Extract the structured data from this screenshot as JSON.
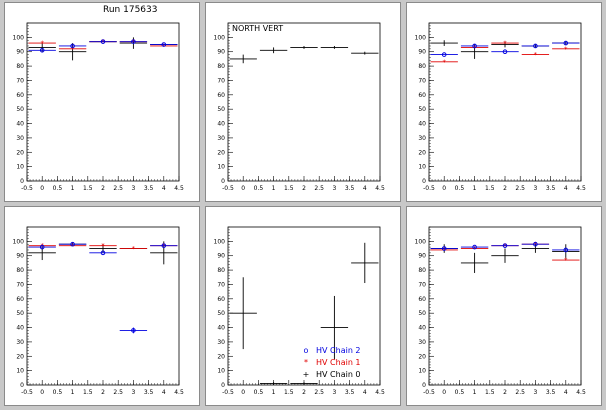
{
  "run_label": "Run 175633",
  "colors": {
    "chain2": "#0000e0",
    "chain1": "#e00000",
    "chain0": "#000000"
  },
  "legend": {
    "chain2": "HV Chain 2",
    "chain1": "HV Chain 1",
    "chain0": "HV Chain 0",
    "chain2_marker": "o",
    "chain1_marker": "*",
    "chain0_marker": "+"
  },
  "chart_data": [
    {
      "type": "scatter",
      "title": "",
      "xlabel": "",
      "ylabel": "",
      "xlim": [
        -0.5,
        4.5
      ],
      "ylim": [
        0,
        110
      ],
      "xticks": [
        "-0.5",
        "0",
        "0.5",
        "1",
        "1.5",
        "2",
        "2.5",
        "3",
        "3.5",
        "4",
        "4.5"
      ],
      "yticks": [
        "0",
        "10",
        "20",
        "30",
        "40",
        "50",
        "60",
        "70",
        "80",
        "90",
        "100"
      ],
      "series": [
        {
          "key": "chain0",
          "x": [
            0,
            1,
            2,
            3,
            4
          ],
          "y": [
            93,
            90,
            97,
            96,
            95
          ],
          "yerr": [
            3,
            6,
            0,
            4,
            0
          ]
        },
        {
          "key": "chain1",
          "x": [
            0,
            1,
            2,
            3,
            4
          ],
          "y": [
            96,
            92,
            97,
            97,
            94
          ],
          "yerr": [
            0,
            0,
            0,
            0,
            0
          ]
        },
        {
          "key": "chain2",
          "x": [
            0,
            1,
            2,
            3,
            4
          ],
          "y": [
            91,
            94,
            97,
            97,
            95
          ],
          "yerr": [
            0,
            0,
            0,
            0,
            0
          ]
        }
      ]
    },
    {
      "type": "scatter",
      "title": "",
      "xlabel": "",
      "ylabel": "",
      "label": "NORTH VERT",
      "xlim": [
        -0.5,
        4.5
      ],
      "ylim": [
        0,
        110
      ],
      "xticks": [
        "-0.5",
        "0",
        "0.5",
        "1",
        "1.5",
        "2",
        "2.5",
        "3",
        "3.5",
        "4",
        "4.5"
      ],
      "yticks": [
        "0",
        "10",
        "20",
        "30",
        "40",
        "50",
        "60",
        "70",
        "80",
        "90",
        "100"
      ],
      "series": [
        {
          "key": "chain0",
          "x": [
            0,
            1,
            2,
            3,
            4
          ],
          "y": [
            85,
            91,
            93,
            93,
            89
          ],
          "yerr": [
            3,
            2,
            1,
            1,
            1
          ]
        }
      ]
    },
    {
      "type": "scatter",
      "title": "",
      "xlabel": "",
      "ylabel": "",
      "xlim": [
        -0.5,
        4.5
      ],
      "ylim": [
        0,
        110
      ],
      "xticks": [
        "-0.5",
        "0",
        "0.5",
        "1",
        "1.5",
        "2",
        "2.5",
        "3",
        "3.5",
        "4",
        "4.5"
      ],
      "yticks": [
        "0",
        "10",
        "20",
        "30",
        "40",
        "50",
        "60",
        "70",
        "80",
        "90",
        "100"
      ],
      "series": [
        {
          "key": "chain0",
          "x": [
            0,
            1,
            2,
            3,
            4
          ],
          "y": [
            96,
            90,
            95,
            94,
            96
          ],
          "yerr": [
            2,
            5,
            2,
            1,
            1
          ]
        },
        {
          "key": "chain1",
          "x": [
            0,
            1,
            2,
            3,
            4
          ],
          "y": [
            83,
            93,
            96,
            88,
            92
          ],
          "yerr": [
            0,
            0,
            0,
            0,
            0
          ]
        },
        {
          "key": "chain2",
          "x": [
            0,
            1,
            2,
            3,
            4
          ],
          "y": [
            88,
            94,
            90,
            94,
            96
          ],
          "yerr": [
            0,
            0,
            0,
            0,
            0
          ]
        }
      ]
    },
    {
      "type": "scatter",
      "title": "",
      "xlabel": "",
      "ylabel": "",
      "xlim": [
        -0.5,
        4.5
      ],
      "ylim": [
        0,
        110
      ],
      "xticks": [
        "-0.5",
        "0",
        "0.5",
        "1",
        "1.5",
        "2",
        "2.5",
        "3",
        "3.5",
        "4",
        "4.5"
      ],
      "yticks": [
        "0",
        "10",
        "20",
        "30",
        "40",
        "50",
        "60",
        "70",
        "80",
        "90",
        "100"
      ],
      "series": [
        {
          "key": "chain0",
          "x": [
            0,
            1,
            2,
            3,
            4
          ],
          "y": [
            92,
            98,
            95,
            95,
            92
          ],
          "yerr": [
            5,
            1,
            3,
            0,
            8
          ]
        },
        {
          "key": "chain1",
          "x": [
            0,
            1,
            2,
            3,
            4
          ],
          "y": [
            97,
            97,
            97,
            95,
            97
          ],
          "yerr": [
            0,
            0,
            0,
            0,
            0
          ]
        },
        {
          "key": "chain2",
          "x": [
            0,
            1,
            2,
            3,
            4
          ],
          "y": [
            96,
            98,
            92,
            38,
            97
          ],
          "yerr": [
            0,
            0,
            0,
            2,
            0
          ]
        }
      ]
    },
    {
      "type": "scatter",
      "title": "",
      "xlabel": "",
      "ylabel": "",
      "xlim": [
        -0.5,
        4.5
      ],
      "ylim": [
        0,
        110
      ],
      "xticks": [
        "-0.5",
        "0",
        "0.5",
        "1",
        "1.5",
        "2",
        "2.5",
        "3",
        "3.5",
        "4",
        "4.5"
      ],
      "yticks": [
        "0",
        "10",
        "20",
        "30",
        "40",
        "50",
        "60",
        "70",
        "80",
        "90",
        "100"
      ],
      "series": [
        {
          "key": "chain0",
          "x": [
            0,
            1,
            2,
            3,
            4
          ],
          "y": [
            50,
            1,
            1,
            40,
            85
          ],
          "yerr": [
            25,
            1,
            1,
            22,
            14
          ]
        }
      ]
    },
    {
      "type": "scatter",
      "title": "",
      "xlabel": "",
      "ylabel": "",
      "xlim": [
        -0.5,
        4.5
      ],
      "ylim": [
        0,
        110
      ],
      "xticks": [
        "-0.5",
        "0",
        "0.5",
        "1",
        "1.5",
        "2",
        "2.5",
        "3",
        "3.5",
        "4",
        "4.5"
      ],
      "yticks": [
        "0",
        "10",
        "20",
        "30",
        "40",
        "50",
        "60",
        "70",
        "80",
        "90",
        "100"
      ],
      "series": [
        {
          "key": "chain0",
          "x": [
            0,
            1,
            2,
            3,
            4
          ],
          "y": [
            95,
            85,
            90,
            95,
            93
          ],
          "yerr": [
            3,
            7,
            5,
            3,
            5
          ]
        },
        {
          "key": "chain1",
          "x": [
            0,
            1,
            2,
            3,
            4
          ],
          "y": [
            94,
            95,
            97,
            98,
            87
          ],
          "yerr": [
            0,
            0,
            0,
            0,
            0
          ]
        },
        {
          "key": "chain2",
          "x": [
            0,
            1,
            2,
            3,
            4
          ],
          "y": [
            95,
            96,
            97,
            98,
            94
          ],
          "yerr": [
            0,
            0,
            0,
            0,
            0
          ]
        }
      ]
    }
  ]
}
